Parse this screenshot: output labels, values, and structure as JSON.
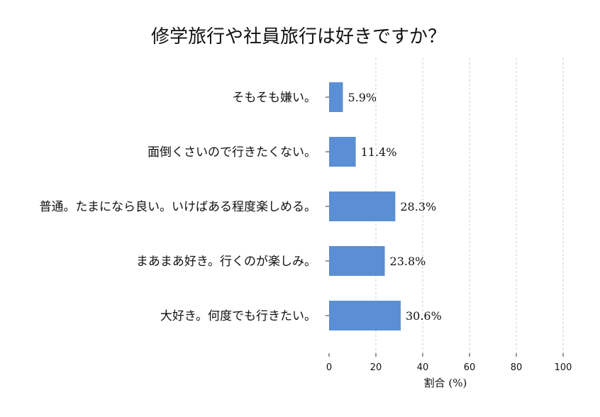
{
  "chart_data": {
    "type": "bar",
    "orientation": "horizontal",
    "title": "修学旅行や社員旅行は好きですか？",
    "xlabel": "割合 (%)",
    "ylabel": "",
    "xlim": [
      0,
      100
    ],
    "xticks": [
      0,
      20,
      40,
      60,
      80,
      100
    ],
    "categories": [
      "そもそも嫌い。",
      "面倒くさいので行きたくない。",
      "普通。たまになら良い。いけばある程度楽しめる。",
      "まあまあ好き。行くのが楽しみ。",
      "大好き。何度でも行きたい。"
    ],
    "values": [
      5.9,
      11.4,
      28.3,
      23.8,
      30.6
    ],
    "value_labels": [
      "5.9%",
      "11.4%",
      "28.3%",
      "23.8%",
      "30.6%"
    ],
    "bar_color": "#5b8fd4",
    "grid": true,
    "grid_axis": "x",
    "legend": "none"
  }
}
